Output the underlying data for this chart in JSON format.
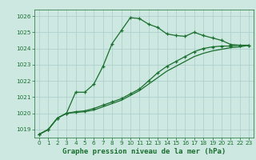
{
  "title": "Graphe pression niveau de la mer (hPa)",
  "bg_color": "#cce8e0",
  "grid_color": "#aacccc",
  "line_color": "#1a6e2e",
  "xlim": [
    -0.5,
    23.5
  ],
  "ylim": [
    1018.5,
    1026.4
  ],
  "xticks": [
    0,
    1,
    2,
    3,
    4,
    5,
    6,
    7,
    8,
    9,
    10,
    11,
    12,
    13,
    14,
    15,
    16,
    17,
    18,
    19,
    20,
    21,
    22,
    23
  ],
  "yticks": [
    1019,
    1020,
    1021,
    1022,
    1023,
    1024,
    1025,
    1026
  ],
  "series1_x": [
    0,
    1,
    2,
    3,
    4,
    5,
    6,
    7,
    8,
    9,
    10,
    11,
    12,
    13,
    14,
    15,
    16,
    17,
    18,
    19,
    20,
    21,
    22,
    23
  ],
  "series1_y": [
    1018.7,
    1019.0,
    1019.7,
    1020.0,
    1021.3,
    1021.3,
    1021.8,
    1022.9,
    1024.3,
    1025.1,
    1025.9,
    1025.85,
    1025.5,
    1025.3,
    1024.9,
    1024.8,
    1024.75,
    1025.0,
    1024.8,
    1024.65,
    1024.5,
    1024.25,
    1024.2,
    1024.2
  ],
  "series2_x": [
    0,
    1,
    2,
    3,
    4,
    5,
    6,
    7,
    8,
    9,
    10,
    11,
    12,
    13,
    14,
    15,
    16,
    17,
    18,
    19,
    20,
    21,
    22,
    23
  ],
  "series2_y": [
    1018.7,
    1019.0,
    1019.7,
    1020.0,
    1020.1,
    1020.15,
    1020.3,
    1020.5,
    1020.7,
    1020.9,
    1021.2,
    1021.5,
    1022.0,
    1022.5,
    1022.9,
    1023.2,
    1023.5,
    1023.8,
    1024.0,
    1024.1,
    1024.15,
    1024.15,
    1024.2,
    1024.2
  ],
  "series3_x": [
    0,
    1,
    2,
    3,
    4,
    5,
    6,
    7,
    8,
    9,
    10,
    11,
    12,
    13,
    14,
    15,
    16,
    17,
    18,
    19,
    20,
    21,
    22,
    23
  ],
  "series3_y": [
    1018.7,
    1019.0,
    1019.7,
    1020.0,
    1020.05,
    1020.1,
    1020.2,
    1020.4,
    1020.6,
    1020.8,
    1021.1,
    1021.4,
    1021.8,
    1022.2,
    1022.6,
    1022.9,
    1023.2,
    1023.5,
    1023.7,
    1023.85,
    1023.95,
    1024.05,
    1024.1,
    1024.2
  ],
  "xlabel_fontsize": 6.5,
  "tick_fontsize": 5.2
}
